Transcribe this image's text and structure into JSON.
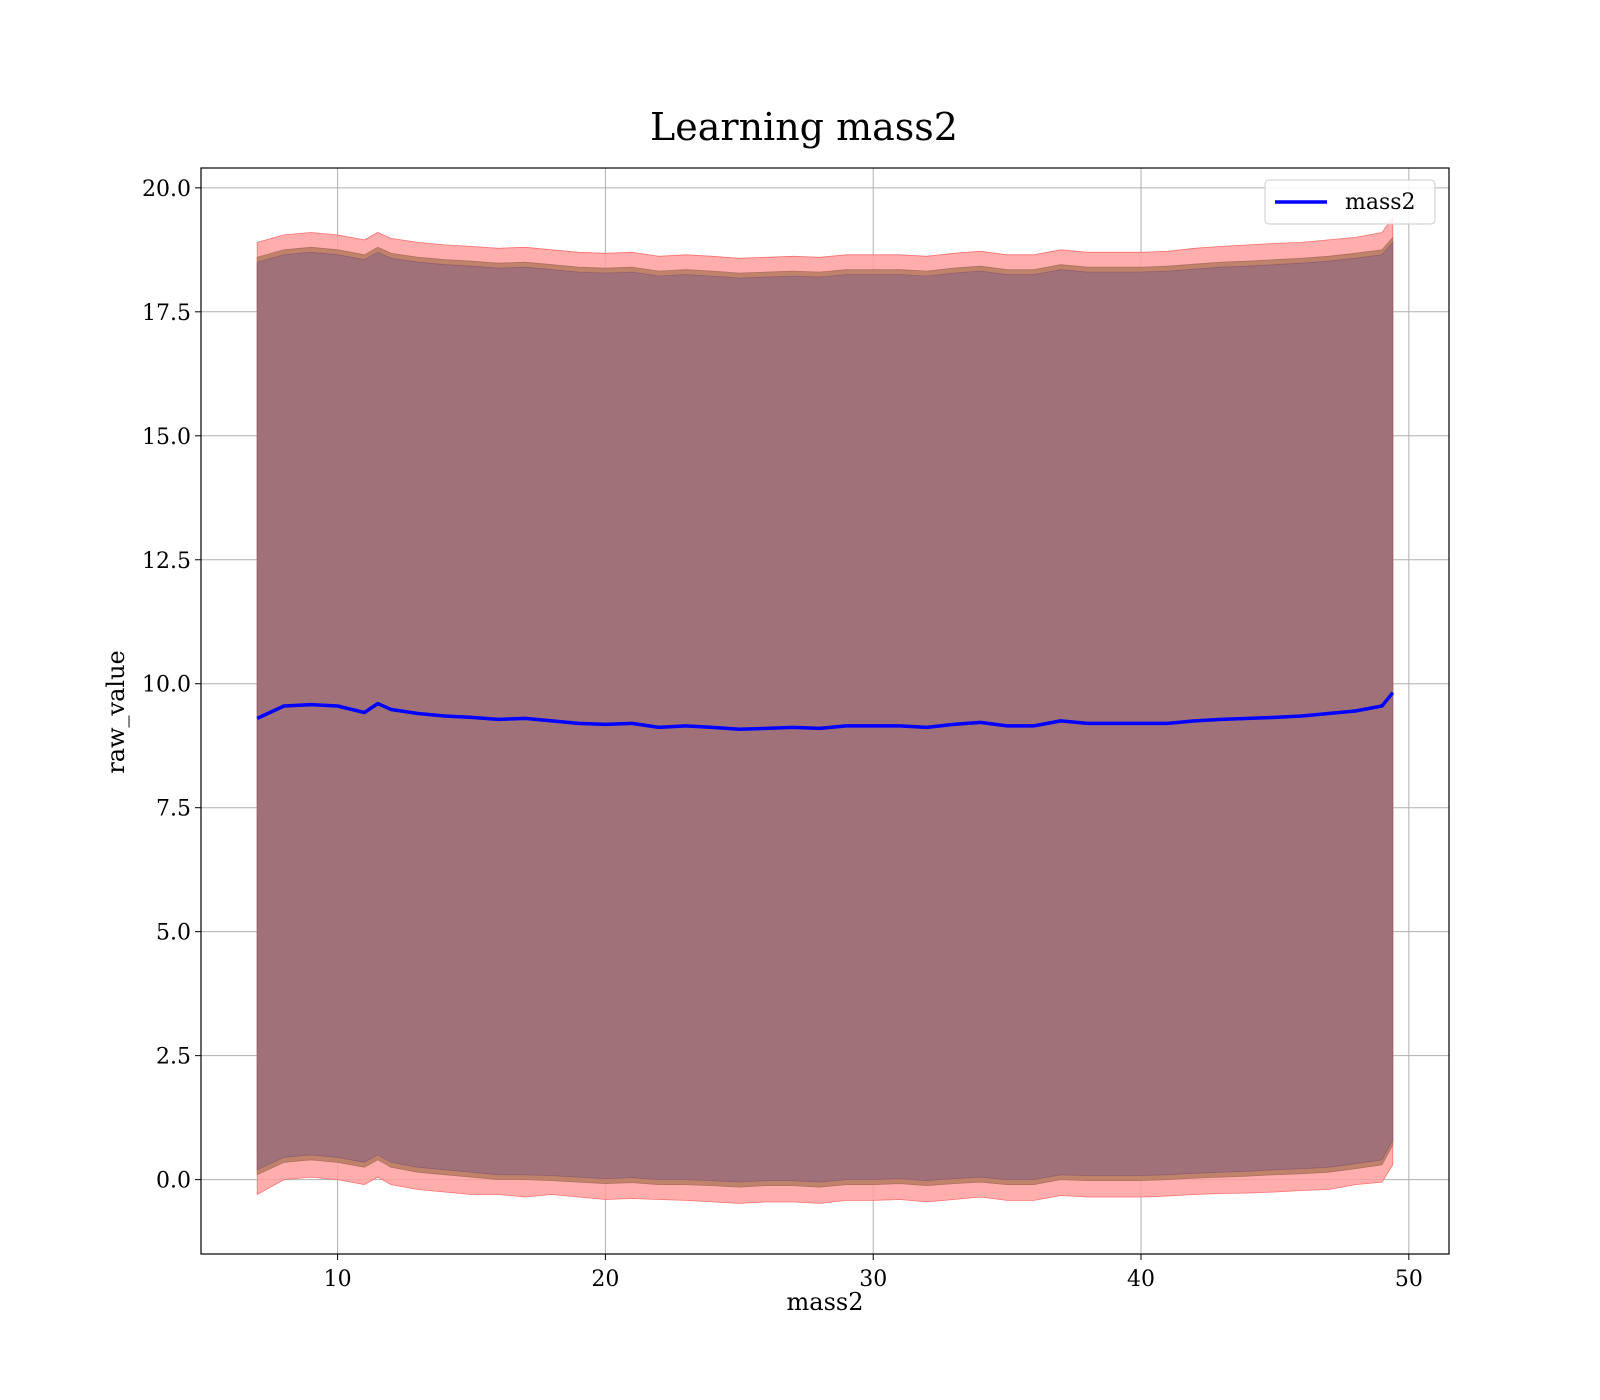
{
  "chart_data": {
    "type": "area",
    "title": "Learning mass2",
    "xlabel": "mass2",
    "ylabel": "raw_value",
    "xlim": [
      4.9,
      51.5
    ],
    "ylim": [
      -1.5,
      20.4
    ],
    "xticks": [
      10,
      20,
      30,
      40,
      50
    ],
    "yticks": [
      0.0,
      2.5,
      5.0,
      7.5,
      10.0,
      12.5,
      15.0,
      17.5,
      20.0
    ],
    "xtick_labels": [
      "10",
      "20",
      "30",
      "40",
      "50"
    ],
    "ytick_labels": [
      "0.0",
      "2.5",
      "5.0",
      "7.5",
      "10.0",
      "12.5",
      "15.0",
      "17.5",
      "20.0"
    ],
    "grid": true,
    "legend": {
      "position": "top-right",
      "entries": [
        "mass2"
      ]
    },
    "colors": {
      "line": "#0000ff",
      "outer_band": "#ff9f9f",
      "middle_band": "#c0826a",
      "inner_band": "#a1717a"
    },
    "x": [
      7.0,
      8.0,
      9.0,
      10.0,
      11.0,
      11.5,
      12.0,
      13.0,
      14.0,
      15.0,
      16.0,
      17.0,
      18.0,
      19.0,
      20.0,
      21.0,
      22.0,
      23.0,
      24.0,
      25.0,
      26.0,
      27.0,
      28.0,
      29.0,
      30.0,
      31.0,
      32.0,
      33.0,
      34.0,
      35.0,
      36.0,
      37.0,
      38.0,
      39.0,
      40.0,
      41.0,
      42.0,
      43.0,
      44.0,
      45.0,
      46.0,
      47.0,
      48.0,
      49.0,
      49.4
    ],
    "series": [
      {
        "name": "mass2",
        "values": [
          9.3,
          9.55,
          9.58,
          9.55,
          9.42,
          9.6,
          9.48,
          9.4,
          9.35,
          9.32,
          9.28,
          9.3,
          9.25,
          9.2,
          9.18,
          9.2,
          9.12,
          9.15,
          9.12,
          9.08,
          9.1,
          9.12,
          9.1,
          9.15,
          9.15,
          9.15,
          9.12,
          9.18,
          9.22,
          9.15,
          9.15,
          9.25,
          9.2,
          9.2,
          9.2,
          9.2,
          9.25,
          9.28,
          9.3,
          9.32,
          9.35,
          9.4,
          9.45,
          9.55,
          9.82
        ]
      }
    ],
    "bands": [
      {
        "lower": [
          -0.3,
          0.0,
          0.05,
          0.0,
          -0.1,
          0.05,
          -0.1,
          -0.2,
          -0.25,
          -0.3,
          -0.3,
          -0.35,
          -0.3,
          -0.35,
          -0.4,
          -0.38,
          -0.4,
          -0.42,
          -0.45,
          -0.48,
          -0.45,
          -0.45,
          -0.48,
          -0.42,
          -0.42,
          -0.4,
          -0.45,
          -0.4,
          -0.35,
          -0.42,
          -0.42,
          -0.32,
          -0.35,
          -0.35,
          -0.35,
          -0.33,
          -0.3,
          -0.28,
          -0.27,
          -0.25,
          -0.22,
          -0.2,
          -0.1,
          -0.05,
          0.3
        ],
        "upper": [
          18.9,
          19.05,
          19.1,
          19.05,
          18.95,
          19.1,
          18.98,
          18.9,
          18.85,
          18.82,
          18.78,
          18.8,
          18.75,
          18.7,
          18.68,
          18.7,
          18.62,
          18.65,
          18.62,
          18.58,
          18.6,
          18.62,
          18.6,
          18.65,
          18.65,
          18.65,
          18.62,
          18.68,
          18.72,
          18.65,
          18.65,
          18.75,
          18.7,
          18.7,
          18.7,
          18.72,
          18.78,
          18.82,
          18.85,
          18.88,
          18.9,
          18.95,
          19.0,
          19.1,
          19.4
        ]
      },
      {
        "lower": [
          0.1,
          0.35,
          0.4,
          0.35,
          0.25,
          0.4,
          0.25,
          0.15,
          0.1,
          0.05,
          0.0,
          0.0,
          -0.02,
          -0.05,
          -0.08,
          -0.06,
          -0.1,
          -0.1,
          -0.12,
          -0.15,
          -0.12,
          -0.12,
          -0.15,
          -0.1,
          -0.1,
          -0.08,
          -0.12,
          -0.08,
          -0.05,
          -0.1,
          -0.1,
          0.0,
          -0.02,
          -0.02,
          -0.02,
          0.0,
          0.03,
          0.05,
          0.07,
          0.1,
          0.12,
          0.15,
          0.22,
          0.3,
          0.7
        ],
        "upper": [
          18.6,
          18.75,
          18.8,
          18.75,
          18.65,
          18.8,
          18.68,
          18.6,
          18.55,
          18.52,
          18.48,
          18.5,
          18.45,
          18.4,
          18.38,
          18.4,
          18.32,
          18.35,
          18.32,
          18.28,
          18.3,
          18.32,
          18.3,
          18.35,
          18.35,
          18.35,
          18.32,
          18.38,
          18.42,
          18.35,
          18.35,
          18.45,
          18.4,
          18.4,
          18.4,
          18.42,
          18.46,
          18.5,
          18.52,
          18.55,
          18.58,
          18.62,
          18.68,
          18.75,
          19.0
        ]
      },
      {
        "lower": [
          0.2,
          0.45,
          0.5,
          0.45,
          0.35,
          0.5,
          0.35,
          0.25,
          0.2,
          0.15,
          0.1,
          0.1,
          0.08,
          0.05,
          0.02,
          0.04,
          0.0,
          0.0,
          -0.02,
          -0.05,
          -0.02,
          -0.02,
          -0.05,
          0.0,
          0.0,
          0.02,
          -0.02,
          0.02,
          0.05,
          0.0,
          0.0,
          0.1,
          0.08,
          0.08,
          0.08,
          0.1,
          0.13,
          0.15,
          0.17,
          0.2,
          0.22,
          0.25,
          0.32,
          0.4,
          0.8
        ],
        "upper": [
          18.5,
          18.65,
          18.7,
          18.65,
          18.55,
          18.7,
          18.58,
          18.5,
          18.45,
          18.42,
          18.38,
          18.4,
          18.35,
          18.3,
          18.28,
          18.3,
          18.22,
          18.25,
          18.22,
          18.18,
          18.2,
          18.22,
          18.2,
          18.25,
          18.25,
          18.25,
          18.22,
          18.28,
          18.32,
          18.25,
          18.25,
          18.35,
          18.3,
          18.3,
          18.3,
          18.32,
          18.36,
          18.4,
          18.42,
          18.45,
          18.48,
          18.52,
          18.58,
          18.65,
          18.9
        ]
      }
    ]
  }
}
